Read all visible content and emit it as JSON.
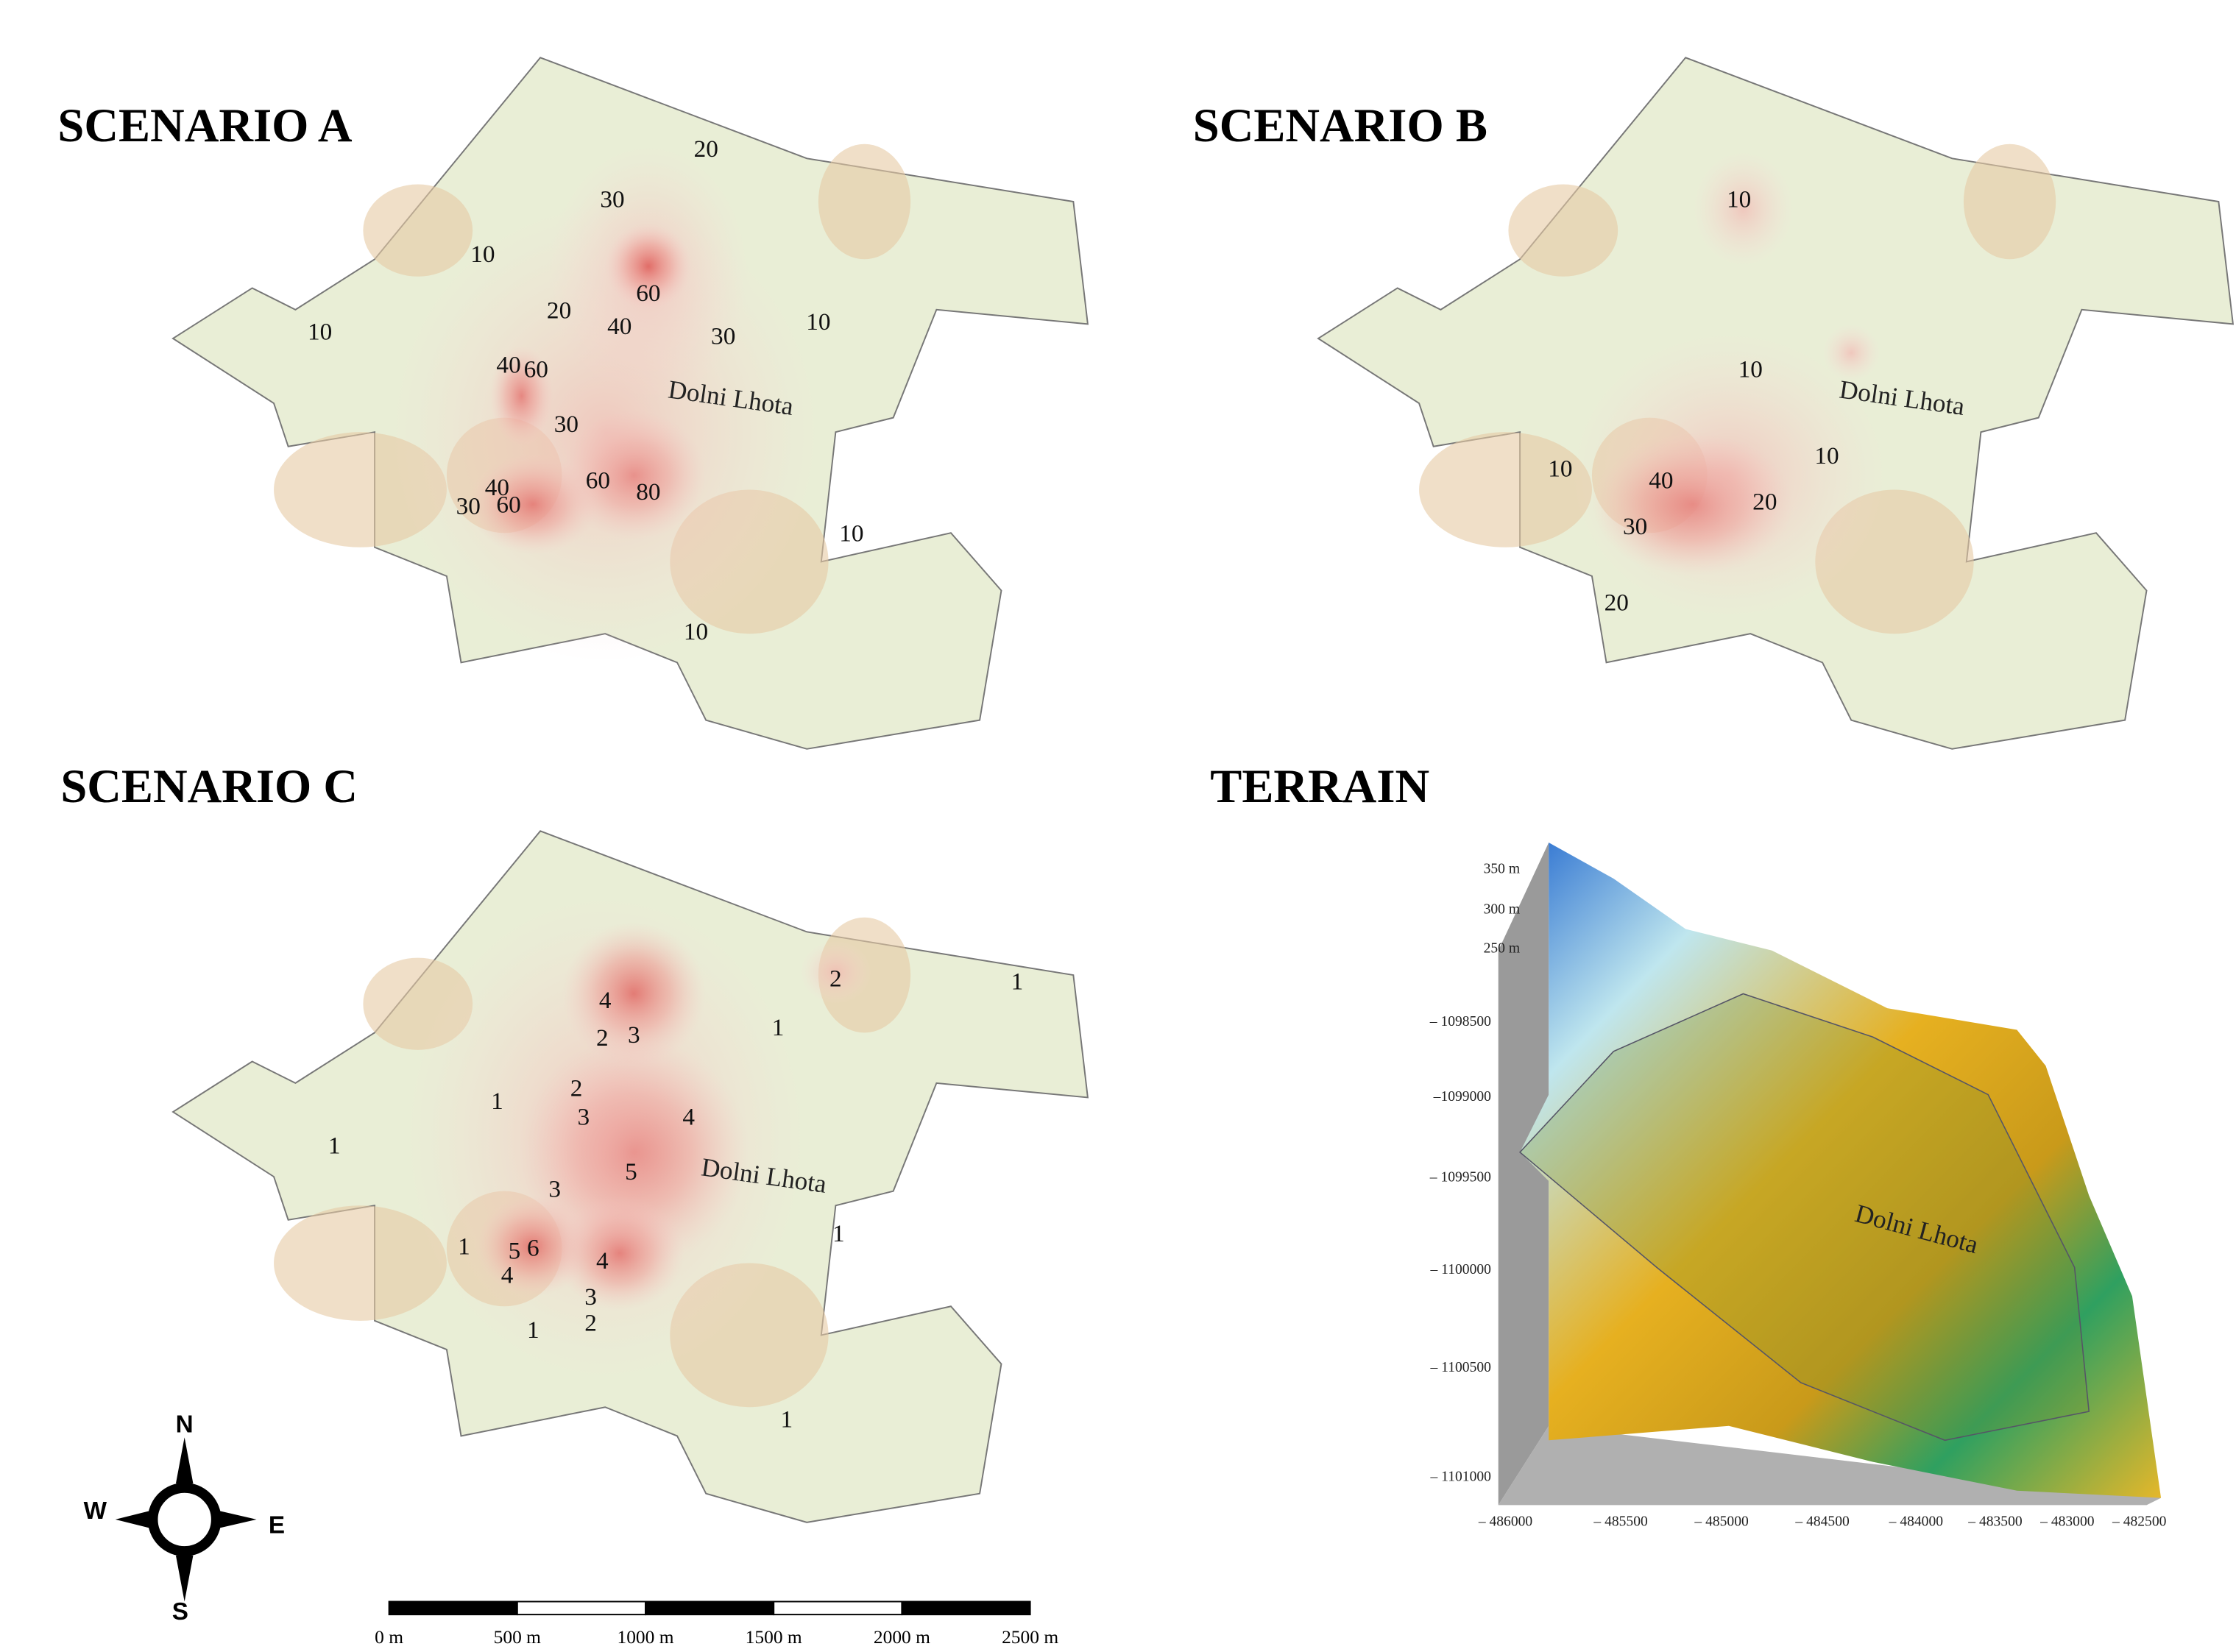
{
  "panels": [
    {
      "title": "SCENARIO A",
      "place_label": "Dolni Lhota",
      "contour_labels": [
        "20",
        "30",
        "10",
        "60",
        "20",
        "40",
        "30",
        "10",
        "10",
        "40",
        "60",
        "30",
        "60",
        "40",
        "80",
        "30",
        "60",
        "10",
        "10"
      ]
    },
    {
      "title": "SCENARIO B",
      "place_label": "Dolni Lhota",
      "contour_labels": [
        "10",
        "10",
        "10",
        "10",
        "40",
        "20",
        "30",
        "20"
      ]
    },
    {
      "title": "SCENARIO C",
      "place_label": "Dolni Lhota",
      "contour_labels": [
        "2",
        "1",
        "4",
        "2",
        "3",
        "1",
        "2",
        "1",
        "3",
        "4",
        "1",
        "5",
        "3",
        "1",
        "5",
        "6",
        "4",
        "1",
        "4",
        "3",
        "2",
        "1",
        "1"
      ]
    }
  ],
  "terrain": {
    "title": "TERRAIN",
    "place_label": "Dolni Lhota",
    "z_ticks": [
      "350 m",
      "300 m",
      "250 m"
    ],
    "y_ticks": [
      "– 1098500",
      "–1099000",
      "– 1099500",
      "– 1100000",
      "– 1100500",
      "– 1101000"
    ],
    "x_ticks": [
      "– 486000",
      "– 485500",
      "– 485000",
      "– 484500",
      "– 484000",
      "– 483500",
      "– 483000",
      "– 482500"
    ]
  },
  "compass": {
    "north": "N",
    "west": "W",
    "east": "E",
    "south": "S"
  },
  "scale_bar": {
    "labels": [
      "0 m",
      "500 m",
      "1000 m",
      "1500 m",
      "2000 m",
      "2500 m"
    ]
  }
}
